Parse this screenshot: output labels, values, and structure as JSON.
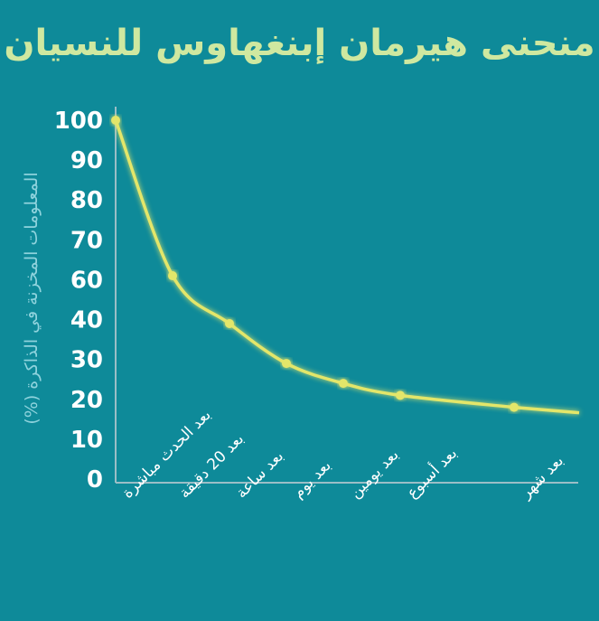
{
  "chart_data": {
    "type": "line",
    "title": "منحنى هيرمان إبنغهاوس للنسيان",
    "ylabel": "المعلومات المخزنة في الذاكرة (%)",
    "xlabel": "",
    "y_ticks": [
      0,
      10,
      20,
      30,
      40,
      60,
      70,
      80,
      90,
      100
    ],
    "categories": [
      "بعد الحدث مباشرة",
      "بعد 20 دقيقة",
      "بعد ساعة",
      "بعد يوم",
      "بعد يومين",
      "بعد أسبوع",
      "بعد شهر"
    ],
    "values": [
      100,
      61,
      39,
      29,
      24,
      21,
      18
    ],
    "colors": {
      "background": "#0e8a99",
      "line": "#e3e66a",
      "axis": "#9bbec6",
      "title": "#cfe8a0"
    }
  }
}
